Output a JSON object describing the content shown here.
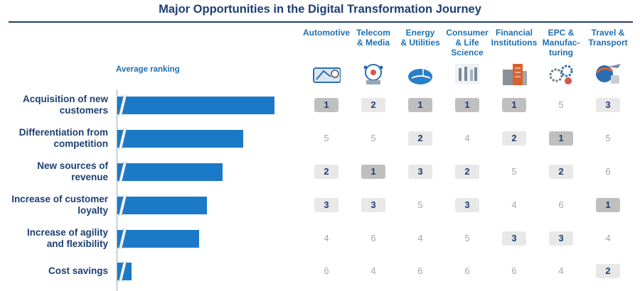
{
  "title": "Major Opportunities in the Digital Transformation Journey",
  "average_ranking_label": "Average ranking",
  "colors": {
    "title": "#1d3f73",
    "bar": "#1b7ac8",
    "header": "#1e6fb0",
    "rank1_box": "#bfbfbf",
    "rank2_3_box": "#e8e8e8",
    "rank_other_text": "#a6a6a6"
  },
  "columns": [
    {
      "label_lines": [
        "Automotive"
      ],
      "icon": "car-dashboard-icon"
    },
    {
      "label_lines": [
        "Telecom",
        "& Media"
      ],
      "icon": "network-cloud-icon"
    },
    {
      "label_lines": [
        "Energy",
        "& Utilities"
      ],
      "icon": "wind-turbine-icon"
    },
    {
      "label_lines": [
        "Consumer",
        "& Life",
        "Science"
      ],
      "icon": "shoppers-icon"
    },
    {
      "label_lines": [
        "Financial",
        "Institutions"
      ],
      "icon": "office-buildings-icon"
    },
    {
      "label_lines": [
        "EPC &",
        "Manufac-",
        "turing"
      ],
      "icon": "gears-icon"
    },
    {
      "label_lines": [
        "Travel &",
        "Transport"
      ],
      "icon": "airplane-luggage-icon"
    }
  ],
  "chart_data": {
    "type": "table",
    "title": "Major Opportunities in the Digital Transformation Journey",
    "bar_label": "Average ranking",
    "axis_break": true,
    "categories": [
      "Acquisition of new customers",
      "Differentiation from competition",
      "New sources of revenue",
      "Increase of customer loyalty",
      "Increase of agility and flexibility",
      "Cost savings"
    ],
    "category_label_lines": [
      [
        "Acquisition of new",
        "customers"
      ],
      [
        "Differentiation from",
        "competition"
      ],
      [
        "New sources of",
        "revenue"
      ],
      [
        "Increase of customer",
        "loyalty"
      ],
      [
        "Increase of agility",
        "and flexibility"
      ],
      [
        "Cost savings"
      ]
    ],
    "bar_values_relative": [
      1.0,
      0.8,
      0.67,
      0.57,
      0.52,
      0.09
    ],
    "columns": [
      "Automotive",
      "Telecom & Media",
      "Energy & Utilities",
      "Consumer & Life Science",
      "Financial Institutions",
      "EPC & Manufacturing",
      "Travel & Transport"
    ],
    "rankings": [
      [
        1,
        2,
        1,
        1,
        1,
        5,
        3
      ],
      [
        5,
        5,
        2,
        4,
        2,
        1,
        5
      ],
      [
        2,
        1,
        3,
        2,
        5,
        2,
        6
      ],
      [
        3,
        3,
        5,
        3,
        4,
        6,
        1
      ],
      [
        4,
        6,
        4,
        5,
        3,
        3,
        4
      ],
      [
        6,
        4,
        6,
        6,
        6,
        4,
        2
      ]
    ]
  }
}
